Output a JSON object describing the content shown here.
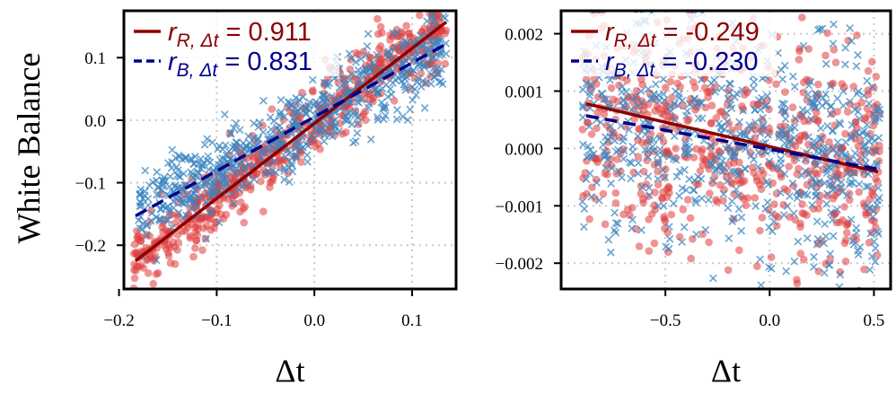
{
  "ylabel": "White Balance",
  "chart_data": [
    {
      "type": "scatter",
      "xlabel": "Δt",
      "ylabel": "White Balance",
      "xlim": [
        -0.195,
        0.145
      ],
      "ylim": [
        -0.27,
        0.175
      ],
      "xticks": [
        -0.2,
        -0.1,
        0.0,
        0.1
      ],
      "xtick_labels": [
        "−0.2",
        "−0.1",
        "0.0",
        "0.1"
      ],
      "yticks": [
        -0.2,
        -0.1,
        0.0,
        0.1
      ],
      "ytick_labels": [
        "−0.2",
        "−0.1",
        "0.0",
        "0.1"
      ],
      "grid": true,
      "legend": "top-left",
      "series": [
        {
          "name": "R",
          "marker": "circle",
          "color": "#e03c3c",
          "fit": {
            "x": [
              -0.183,
              0.135
            ],
            "y": [
              -0.225,
              0.157
            ]
          },
          "fit_color": "#8b0000",
          "fit_style": "solid",
          "legend_label": "r_{R,Δt} = 0.911",
          "legend_sub": "R, Δt",
          "legend_value": " = 0.911",
          "cloud": {
            "x_range": [
              -0.185,
              0.135
            ],
            "slope": 1.2,
            "intercept": -0.003,
            "noise": 0.028,
            "n": 650
          }
        },
        {
          "name": "B",
          "marker": "x",
          "color": "#3a86c0",
          "fit": {
            "x": [
              -0.183,
              0.135
            ],
            "y": [
              -0.153,
              0.122
            ]
          },
          "fit_color": "#00008b",
          "fit_style": "dashed",
          "legend_label": "r_{B,Δt} = 0.831",
          "legend_sub": "B, Δt",
          "legend_value": " = 0.831",
          "cloud": {
            "x_range": [
              -0.18,
              0.135
            ],
            "slope": 0.86,
            "intercept": 0.004,
            "noise": 0.032,
            "n": 650
          }
        }
      ]
    },
    {
      "type": "scatter",
      "xlabel": "Δt",
      "ylabel": "",
      "xlim": [
        -1.0,
        0.58
      ],
      "ylim": [
        -0.00245,
        0.0024
      ],
      "xticks": [
        -0.5,
        0.0,
        0.5
      ],
      "xtick_labels": [
        "−0.5",
        "0.0",
        "0.5"
      ],
      "yticks": [
        -0.002,
        -0.001,
        0.0,
        0.001,
        0.002
      ],
      "ytick_labels": [
        "−0.002",
        "−0.001",
        "0.000",
        "0.001",
        "0.002"
      ],
      "grid": true,
      "legend": "top-left",
      "series": [
        {
          "name": "R",
          "marker": "circle",
          "color": "#e03c3c",
          "fit": {
            "x": [
              -0.88,
              0.52
            ],
            "y": [
              0.00078,
              -0.00041
            ]
          },
          "fit_color": "#8b0000",
          "fit_style": "solid",
          "legend_label": "r_{R,Δt} = -0.249",
          "legend_sub": "R, Δt",
          "legend_value": " = -0.249",
          "cloud": {
            "x_range": [
              -0.9,
              0.53
            ],
            "slope": -0.00085,
            "intercept": 0.0,
            "noise": 0.0011,
            "n": 650
          }
        },
        {
          "name": "B",
          "marker": "x",
          "color": "#3a86c0",
          "fit": {
            "x": [
              -0.88,
              0.52
            ],
            "y": [
              0.00057,
              -0.00036
            ]
          },
          "fit_color": "#00008b",
          "fit_style": "dashed",
          "legend_label": "r_{B,Δt} = -0.230",
          "legend_sub": "B, Δt",
          "legend_value": " = -0.230",
          "cloud": {
            "x_range": [
              -0.9,
              0.53
            ],
            "slope": -0.00066,
            "intercept": 0.0,
            "noise": 0.00095,
            "n": 650
          }
        }
      ]
    }
  ]
}
